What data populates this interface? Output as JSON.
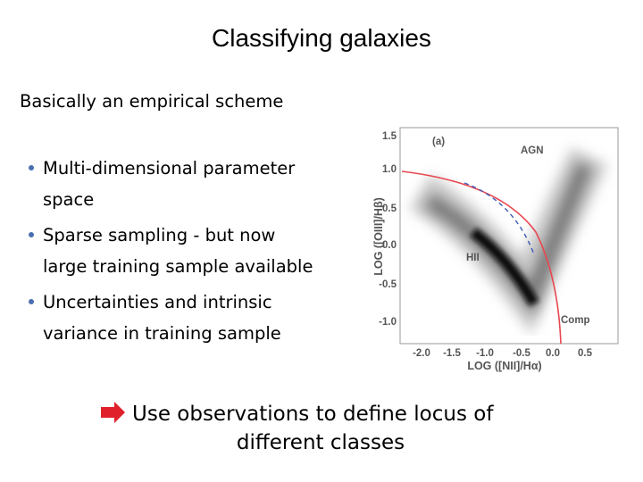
{
  "slide": {
    "title": "Classifying galaxies",
    "subtitle": "Basically an empirical scheme",
    "bullets": [
      [
        "Multi-dimensional parameter",
        "space"
      ],
      [
        "Sparse sampling  - but now",
        "large training sample available"
      ],
      [
        "Uncertainties and intrinsic",
        "variance in  training sample"
      ]
    ],
    "conclusion": [
      "Use observations to define locus of",
      "different classes"
    ],
    "figure": {
      "panel": "(a)",
      "regions": [
        "AGN",
        "HII",
        "Comp"
      ],
      "x_label": "LOG ([NII]/Hα)",
      "y_label": "LOG ([OIII]/Hβ)",
      "x_ticks": [
        "-2.0",
        "-1.5",
        "-1.0",
        "-0.5",
        "0.0",
        "0.5"
      ],
      "y_ticks": [
        "1.5",
        "1.0",
        "0.5",
        "0.0",
        "-0.5",
        "-1.0"
      ]
    }
  }
}
